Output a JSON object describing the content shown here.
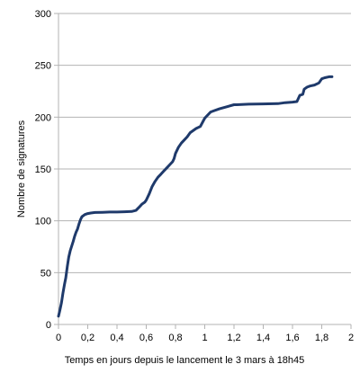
{
  "chart_data": {
    "type": "line",
    "title": "",
    "xlabel": "Temps en jours depuis le lancement le 3 mars à 18h45",
    "ylabel": "Nombre de signatures",
    "xlim": [
      0,
      2
    ],
    "ylim": [
      0,
      300
    ],
    "x_ticks": [
      0,
      0.2,
      0.4,
      0.6,
      0.8,
      1,
      1.2,
      1.4,
      1.6,
      1.8,
      2
    ],
    "x_tick_labels": [
      "0",
      "0,2",
      "0,4",
      "0,6",
      "0,8",
      "1",
      "1,2",
      "1,4",
      "1,6",
      "1,8",
      "2"
    ],
    "y_ticks": [
      0,
      50,
      100,
      150,
      200,
      250,
      300
    ],
    "y_tick_labels": [
      "0",
      "50",
      "100",
      "150",
      "200",
      "250",
      "300"
    ],
    "grid": "horizontal",
    "legend": "none",
    "line_color": "#1f3a6b",
    "series": [
      {
        "x": [
          0,
          0.01,
          0.02,
          0.03,
          0.04,
          0.05,
          0.06,
          0.07,
          0.08,
          0.1,
          0.11,
          0.12,
          0.13,
          0.14,
          0.15,
          0.16,
          0.18,
          0.2,
          0.22,
          0.25,
          0.3,
          0.35,
          0.4,
          0.45,
          0.5,
          0.53,
          0.55,
          0.57,
          0.59,
          0.6,
          0.62,
          0.64,
          0.66,
          0.68,
          0.7,
          0.72,
          0.74,
          0.76,
          0.78,
          0.79,
          0.8,
          0.82,
          0.84,
          0.86,
          0.88,
          0.9,
          0.94,
          0.97,
          1.0,
          1.02,
          1.04,
          1.06,
          1.1,
          1.15,
          1.2,
          1.22,
          1.3,
          1.4,
          1.5,
          1.55,
          1.6,
          1.63,
          1.65,
          1.67,
          1.68,
          1.7,
          1.72,
          1.75,
          1.78,
          1.8,
          1.82,
          1.85,
          1.87
        ],
        "y": [
          8,
          14,
          21,
          30,
          38,
          45,
          56,
          65,
          71,
          80,
          85,
          89,
          92,
          97,
          101,
          104,
          106,
          107,
          107.5,
          108,
          108.2,
          108.5,
          108.5,
          108.7,
          109,
          110,
          113,
          116,
          118,
          120,
          126,
          133,
          138,
          142,
          145,
          148,
          151,
          154,
          157,
          160,
          165,
          171,
          175,
          178,
          181,
          185,
          189,
          191,
          199,
          202,
          205,
          206,
          208,
          210,
          212,
          212,
          212.5,
          212.8,
          213,
          214,
          214.5,
          215,
          221,
          222,
          227,
          229,
          230,
          231,
          233,
          237,
          238,
          239,
          239
        ]
      }
    ]
  }
}
